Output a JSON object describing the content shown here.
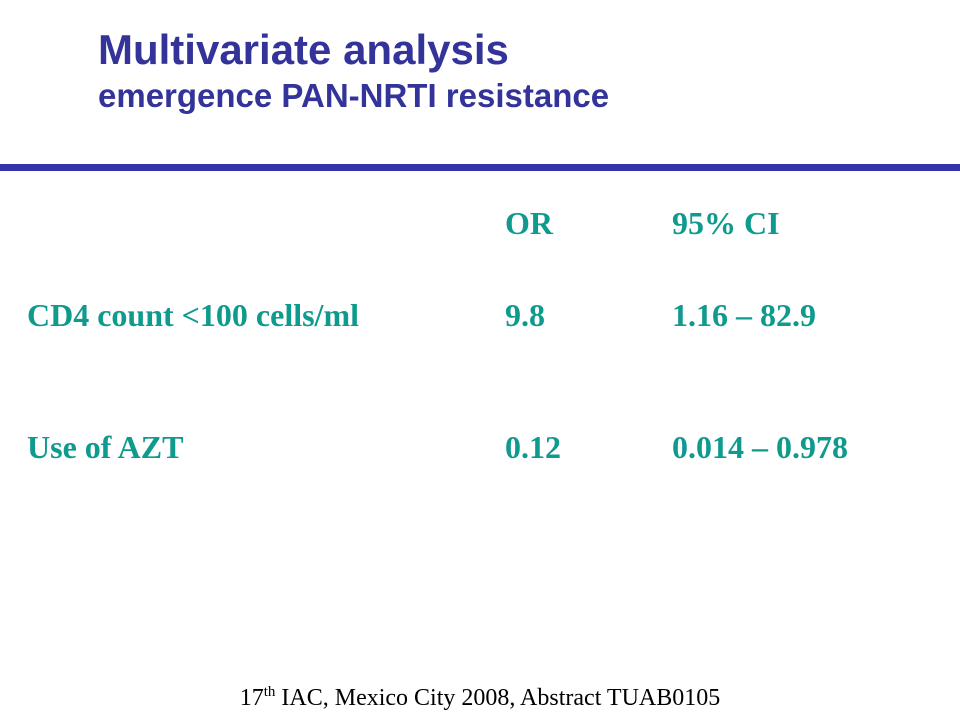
{
  "slide": {
    "title": "Multivariate analysis",
    "subtitle": "emergence PAN-NRTI resistance",
    "colors": {
      "title": "#33339a",
      "divider": "#3333aa",
      "table_text": "#0f9a8e",
      "footer_text": "#000000"
    }
  },
  "table": {
    "headers": {
      "label": "",
      "or": "OR",
      "ci": "95% CI"
    },
    "rows": [
      {
        "label": "CD4 count <100 cells/ml",
        "or": "9.8",
        "ci": "1.16 – 82.9"
      },
      {
        "label": "Use of AZT",
        "or": "0.12",
        "ci": "0.014 – 0.978"
      }
    ]
  },
  "footer": {
    "ordinal_number": "17",
    "ordinal_suffix": "th",
    "citation": " IAC, Mexico City 2008, Abstract TUAB0105"
  }
}
